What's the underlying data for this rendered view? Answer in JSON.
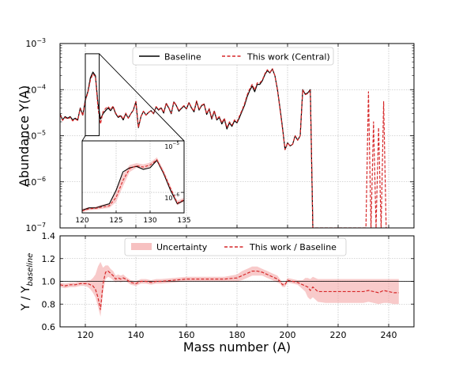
{
  "chart_data": [
    {
      "type": "line",
      "panel": "top",
      "scale": "log",
      "ylabel": "Abundance Y(A)",
      "xlim": [
        110,
        250
      ],
      "ylim": [
        1e-07,
        0.001
      ],
      "x_ticks": [
        120,
        140,
        160,
        180,
        200,
        220,
        240
      ],
      "y_ticks": [
        {
          "value": 1e-07,
          "mantissa": "10",
          "exp": "−7"
        },
        {
          "value": 1e-06,
          "mantissa": "10",
          "exp": "−6"
        },
        {
          "value": 1e-05,
          "mantissa": "10",
          "exp": "−5"
        },
        {
          "value": 0.0001,
          "mantissa": "10",
          "exp": "−4"
        },
        {
          "value": 0.001,
          "mantissa": "10",
          "exp": "−3"
        }
      ],
      "grid": true,
      "legend": "top-right",
      "series": [
        {
          "name": "Baseline",
          "color": "#000000",
          "style": "solid",
          "x": [
            110,
            111,
            112,
            113,
            114,
            115,
            116,
            117,
            118,
            119,
            120,
            121,
            122,
            123,
            124,
            125,
            126,
            127,
            128,
            129,
            130,
            131,
            132,
            133,
            134,
            135,
            136,
            137,
            138,
            139,
            140,
            141,
            142,
            143,
            144,
            145,
            146,
            147,
            148,
            149,
            150,
            151,
            152,
            153,
            154,
            155,
            156,
            157,
            158,
            159,
            160,
            161,
            162,
            163,
            164,
            165,
            166,
            167,
            168,
            169,
            170,
            171,
            172,
            173,
            174,
            175,
            176,
            177,
            178,
            179,
            180,
            181,
            182,
            183,
            184,
            185,
            186,
            187,
            188,
            189,
            190,
            191,
            192,
            193,
            194,
            195,
            196,
            197,
            198,
            199,
            200,
            201,
            202,
            203,
            204,
            205,
            206,
            207,
            208,
            209,
            210
          ],
          "y": [
            3e-05,
            2.2e-05,
            2.6e-05,
            2.4e-05,
            2.6e-05,
            2.2e-05,
            2.4e-05,
            2.2e-05,
            4e-05,
            2.8e-05,
            6e-05,
            9e-05,
            0.00018,
            0.00024,
            0.0002,
            5e-05,
            2.3e-05,
            3e-05,
            3.5e-05,
            4e-05,
            3.5e-05,
            4.2e-05,
            3e-05,
            2.5e-05,
            2.7e-05,
            2.2e-05,
            3e-05,
            2.4e-05,
            3e-05,
            3.6e-05,
            5.5e-05,
            1.5e-05,
            2.6e-05,
            3.4e-05,
            2.8e-05,
            3.2e-05,
            3.5e-05,
            3e-05,
            4.2e-05,
            3.6e-05,
            4e-05,
            3.1e-05,
            5e-05,
            4e-05,
            3e-05,
            5.4e-05,
            4.5e-05,
            3.4e-05,
            3.9e-05,
            4.4e-05,
            3.8e-05,
            5.2e-05,
            4e-05,
            3.3e-05,
            5.6e-05,
            3.6e-05,
            4.5e-05,
            4.8e-05,
            2.9e-05,
            3.8e-05,
            2.3e-05,
            3.4e-05,
            2.2e-05,
            2.5e-05,
            1.8e-05,
            2.3e-05,
            1.4e-05,
            1.9e-05,
            1.6e-05,
            2.1e-05,
            1.9e-05,
            2.5e-05,
            3.4e-05,
            4.6e-05,
            7e-05,
            9.5e-05,
            0.00012,
            9e-05,
            0.00013,
            0.00013,
            0.000155,
            0.00021,
            0.00026,
            0.00023,
            0.00028,
            0.0002,
            0.0001,
            4e-05,
            1.5e-05,
            5e-06,
            7e-06,
            6e-06,
            6.5e-06,
            1e-05,
            8e-06,
            1e-05,
            0.0001,
            8e-05,
            8.5e-05,
            0.0001,
            1e-07
          ]
        },
        {
          "name": "This work (Central)",
          "color": "#d62728",
          "style": "dashed",
          "x": [
            110,
            111,
            112,
            113,
            114,
            115,
            116,
            117,
            118,
            119,
            120,
            121,
            122,
            123,
            124,
            125,
            126,
            127,
            128,
            129,
            130,
            131,
            132,
            133,
            134,
            135,
            136,
            137,
            138,
            139,
            140,
            141,
            142,
            143,
            144,
            145,
            146,
            147,
            148,
            149,
            150,
            151,
            152,
            153,
            154,
            155,
            156,
            157,
            158,
            159,
            160,
            161,
            162,
            163,
            164,
            165,
            166,
            167,
            168,
            169,
            170,
            171,
            172,
            173,
            174,
            175,
            176,
            177,
            178,
            179,
            180,
            181,
            182,
            183,
            184,
            185,
            186,
            187,
            188,
            189,
            190,
            191,
            192,
            193,
            194,
            195,
            196,
            197,
            198,
            199,
            200,
            201,
            202,
            203,
            204,
            205,
            206,
            207,
            208,
            209,
            210,
            231,
            232,
            233,
            234,
            235,
            236,
            237,
            238,
            239
          ],
          "y": [
            2.9e-05,
            2.15e-05,
            2.5e-05,
            2.3e-05,
            2.5e-05,
            2.1e-05,
            2.3e-05,
            2.15e-05,
            3.9e-05,
            2.7e-05,
            5.8e-05,
            8.5e-05,
            0.00016,
            0.00022,
            0.00019,
            4e-05,
            1.8e-05,
            3.3e-05,
            3.9e-05,
            4.3e-05,
            3.7e-05,
            4.4e-05,
            3.1e-05,
            2.6e-05,
            2.8e-05,
            2.3e-05,
            3.1e-05,
            2.4e-05,
            3e-05,
            3.6e-05,
            5.5e-05,
            1.5e-05,
            2.6e-05,
            3.4e-05,
            2.8e-05,
            3.2e-05,
            3.5e-05,
            3e-05,
            4.3e-05,
            3.7e-05,
            4.1e-05,
            3.2e-05,
            5.1e-05,
            4.1e-05,
            3.1e-05,
            5.5e-05,
            4.6e-05,
            3.5e-05,
            4e-05,
            4.5e-05,
            3.9e-05,
            5.3e-05,
            4.1e-05,
            3.4e-05,
            5.7e-05,
            3.7e-05,
            4.6e-05,
            4.9e-05,
            3e-05,
            3.9e-05,
            2.4e-05,
            3.5e-05,
            2.3e-05,
            2.6e-05,
            1.9e-05,
            2.4e-05,
            1.5e-05,
            2e-05,
            1.7e-05,
            2.2e-05,
            2e-05,
            2.7e-05,
            3.6e-05,
            5e-05,
            7.6e-05,
            0.000103,
            0.00013,
            9.8e-05,
            0.00014,
            0.00014,
            0.00016,
            0.00022,
            0.00027,
            0.000235,
            0.000285,
            0.0002,
            0.0001,
            3.8e-05,
            1.4e-05,
            5e-06,
            7e-06,
            6e-06,
            6.5e-06,
            1e-05,
            8e-06,
            1e-05,
            9.8e-05,
            7.8e-05,
            8.2e-05,
            9.6e-05,
            1e-07,
            1e-07,
            9e-05,
            1e-07,
            2e-05,
            1e-07,
            1.5e-05,
            1e-07,
            5.5e-05,
            1e-07
          ]
        }
      ],
      "inset": {
        "xlim": [
          120,
          135
        ],
        "ylim": [
          4e-07,
          1e-05
        ],
        "x_ticks": [
          120,
          125,
          130,
          135
        ],
        "y_ticks": [
          {
            "value": 1e-06,
            "mantissa": "10",
            "exp": "−6"
          },
          {
            "value": 1e-05,
            "mantissa": "10",
            "exp": "−5"
          }
        ],
        "zoom_box": {
          "xlim": [
            120,
            125.5
          ],
          "ylim": [
            1e-05,
            0.0006
          ]
        },
        "baseline": {
          "x": [
            120,
            121,
            122,
            123,
            124,
            125,
            126,
            127,
            128,
            129,
            130,
            131,
            132,
            133,
            134,
            135
          ],
          "y": [
            4.5e-07,
            5e-07,
            5e-07,
            5.5e-07,
            6e-07,
            1.1e-06,
            2.5e-06,
            3e-06,
            3.2e-06,
            2.8e-06,
            3e-06,
            4.2e-06,
            2.3e-06,
            1.1e-06,
            6e-07,
            7e-07
          ]
        },
        "central": {
          "x": [
            120,
            121,
            122,
            123,
            124,
            125,
            126,
            127,
            128,
            129,
            130,
            131,
            132,
            133,
            134,
            135
          ],
          "y": [
            4.4e-07,
            4.8e-07,
            4.9e-07,
            5.2e-07,
            5.5e-07,
            8e-07,
            1.7e-06,
            2.9e-06,
            3.3e-06,
            3.1e-06,
            3.4e-06,
            4.3e-06,
            2.4e-06,
            1.2e-06,
            6.2e-07,
            7.2e-07
          ]
        },
        "band": {
          "x": [
            120,
            121,
            122,
            123,
            124,
            125,
            126,
            127,
            128,
            129,
            130,
            131,
            132,
            133,
            134,
            135
          ],
          "lo": [
            4.1e-07,
            4.5e-07,
            4.6e-07,
            4.8e-07,
            5e-07,
            6.5e-07,
            1.3e-06,
            2.5e-06,
            3e-06,
            2.8e-06,
            3.1e-06,
            3.9e-06,
            2.2e-06,
            1.1e-06,
            5.6e-07,
            6.6e-07
          ],
          "hi": [
            4.8e-07,
            5.2e-07,
            5.3e-07,
            5.8e-07,
            6.2e-07,
            1.1e-06,
            2.3e-06,
            3.4e-06,
            3.7e-06,
            3.5e-06,
            3.8e-06,
            4.8e-06,
            2.7e-06,
            1.35e-06,
            6.9e-07,
            7.9e-07
          ]
        }
      }
    },
    {
      "type": "line",
      "panel": "bottom",
      "xlabel": "Mass number (A)",
      "ylabel_main": "Y / Y",
      "ylabel_sub": "baseline",
      "xlim": [
        110,
        250
      ],
      "ylim": [
        0.6,
        1.4
      ],
      "x_ticks": [
        120,
        140,
        160,
        180,
        200,
        220,
        240
      ],
      "y_ticks": [
        0.6,
        0.8,
        1.0,
        1.2,
        1.4
      ],
      "y_tick_labels": [
        "0.6",
        "0.8",
        "1.0",
        "1.2",
        "1.4"
      ],
      "grid": true,
      "legend": "top-center",
      "reference_line": 1.0,
      "series": [
        {
          "name": "This work / Baseline",
          "color": "#d62728",
          "style": "dashed",
          "x": [
            110,
            112,
            114,
            116,
            118,
            120,
            121,
            122,
            123,
            124,
            125,
            126,
            127,
            128,
            129,
            130,
            131,
            132,
            133,
            134,
            135,
            136,
            138,
            140,
            142,
            144,
            146,
            148,
            150,
            155,
            160,
            165,
            170,
            175,
            180,
            182,
            184,
            186,
            188,
            190,
            192,
            194,
            196,
            197,
            198,
            199,
            200,
            202,
            204,
            206,
            207,
            208,
            209,
            210,
            212,
            215,
            220,
            225,
            230,
            232,
            234,
            236,
            238,
            240,
            242,
            244
          ],
          "y": [
            0.97,
            0.96,
            0.97,
            0.97,
            0.98,
            0.98,
            0.98,
            0.97,
            0.96,
            0.93,
            0.86,
            0.75,
            0.98,
            1.08,
            1.09,
            1.07,
            1.05,
            1.02,
            1.03,
            1.02,
            1.03,
            1.02,
            0.99,
            0.98,
            1.0,
            1.0,
            0.99,
            1.0,
            1.0,
            1.01,
            1.02,
            1.02,
            1.02,
            1.02,
            1.03,
            1.05,
            1.07,
            1.09,
            1.09,
            1.08,
            1.06,
            1.04,
            1.02,
            1.0,
            0.97,
            0.97,
            1.01,
            1.0,
            0.99,
            0.97,
            0.96,
            0.95,
            0.92,
            0.95,
            0.91,
            0.91,
            0.91,
            0.91,
            0.91,
            0.92,
            0.91,
            0.9,
            0.92,
            0.91,
            0.9,
            0.9
          ]
        }
      ],
      "band": {
        "name": "Uncertainty",
        "color": "#f4a6a6",
        "x": [
          110,
          112,
          114,
          116,
          118,
          120,
          121,
          122,
          123,
          124,
          125,
          126,
          127,
          128,
          129,
          130,
          131,
          132,
          133,
          134,
          135,
          136,
          138,
          140,
          142,
          144,
          146,
          148,
          150,
          155,
          160,
          165,
          170,
          175,
          180,
          182,
          184,
          186,
          188,
          190,
          192,
          194,
          196,
          197,
          198,
          199,
          200,
          202,
          204,
          206,
          207,
          208,
          209,
          210,
          212,
          215,
          220,
          225,
          230,
          232,
          234,
          236,
          238,
          240,
          242,
          244
        ],
        "lo": [
          0.95,
          0.94,
          0.95,
          0.95,
          0.96,
          0.96,
          0.95,
          0.93,
          0.9,
          0.86,
          0.78,
          0.69,
          0.9,
          1.02,
          1.04,
          1.03,
          1.01,
          0.99,
          1.0,
          0.99,
          1.0,
          1.0,
          0.97,
          0.96,
          0.98,
          0.98,
          0.97,
          0.98,
          0.98,
          0.99,
          1.0,
          1.0,
          1.0,
          1.0,
          1.0,
          1.01,
          1.03,
          1.05,
          1.05,
          1.05,
          1.03,
          1.01,
          0.99,
          0.98,
          0.95,
          0.95,
          0.99,
          0.98,
          0.97,
          0.93,
          0.91,
          0.86,
          0.84,
          0.86,
          0.82,
          0.81,
          0.81,
          0.81,
          0.81,
          0.82,
          0.81,
          0.8,
          0.81,
          0.81,
          0.8,
          0.8
        ],
        "hi": [
          0.99,
          0.98,
          0.99,
          0.99,
          1.0,
          1.0,
          1.01,
          1.01,
          1.03,
          1.06,
          1.13,
          1.17,
          1.12,
          1.14,
          1.14,
          1.11,
          1.09,
          1.05,
          1.06,
          1.05,
          1.06,
          1.04,
          1.01,
          1.0,
          1.02,
          1.02,
          1.01,
          1.02,
          1.02,
          1.03,
          1.04,
          1.04,
          1.04,
          1.04,
          1.06,
          1.09,
          1.11,
          1.13,
          1.13,
          1.11,
          1.09,
          1.07,
          1.05,
          1.02,
          0.99,
          0.99,
          1.03,
          1.02,
          1.01,
          1.01,
          1.03,
          1.03,
          1.02,
          1.04,
          1.02,
          1.02,
          1.02,
          1.02,
          1.02,
          1.02,
          1.02,
          1.02,
          1.02,
          1.02,
          1.02,
          1.02
        ]
      }
    }
  ]
}
